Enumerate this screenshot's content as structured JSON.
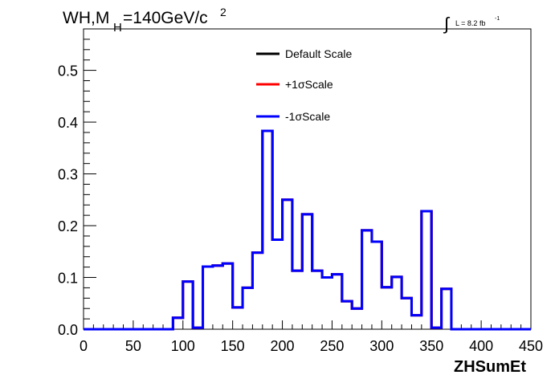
{
  "chart_data": {
    "type": "line",
    "title_main": "WH,M",
    "title_sub": "H",
    "title_rest": "=140GeV/c",
    "title_sup": "2",
    "lumi_symbol": "∫",
    "lumi_text": "L = 8.2 fb",
    "lumi_sup": "-1",
    "xlabel": "ZHSumEt",
    "ylabel": "",
    "xlim": [
      0,
      450
    ],
    "ylim": [
      0,
      0.58
    ],
    "xticks": [
      "0",
      "50",
      "100",
      "150",
      "200",
      "250",
      "300",
      "350",
      "400",
      "450"
    ],
    "yticks": [
      "0.0",
      "0.1",
      "0.2",
      "0.3",
      "0.4",
      "0.5"
    ],
    "x_tick_values": [
      0,
      50,
      100,
      150,
      200,
      250,
      300,
      350,
      400,
      450
    ],
    "y_tick_values": [
      0.0,
      0.1,
      0.2,
      0.3,
      0.4,
      0.5
    ],
    "grid": false,
    "legend_position": "top-center",
    "bin_edges": [
      0,
      10,
      20,
      30,
      40,
      50,
      60,
      70,
      80,
      90,
      100,
      110,
      120,
      130,
      140,
      150,
      160,
      170,
      180,
      190,
      200,
      210,
      220,
      230,
      240,
      250,
      260,
      270,
      280,
      290,
      300,
      310,
      320,
      330,
      340,
      350,
      360,
      370,
      380,
      390,
      400,
      410,
      420,
      430,
      440,
      450
    ],
    "series": [
      {
        "name": "Default Scale",
        "color": "#000000",
        "values": [
          0,
          0,
          0,
          0,
          0,
          0,
          0,
          0,
          0,
          0.022,
          0.092,
          0.003,
          0.121,
          0.123,
          0.127,
          0.042,
          0.08,
          0.148,
          0.383,
          0.173,
          0.25,
          0.113,
          0.222,
          0.113,
          0.1,
          0.106,
          0.054,
          0.04,
          0.191,
          0.169,
          0.081,
          0.101,
          0.06,
          0.027,
          0.228,
          0.003,
          0.078,
          0,
          0,
          0,
          0,
          0,
          0,
          0,
          0
        ]
      },
      {
        "name": "+1σScale",
        "color": "#ff0000",
        "values": [
          0,
          0,
          0,
          0,
          0,
          0,
          0,
          0,
          0,
          0.022,
          0.092,
          0.003,
          0.121,
          0.123,
          0.127,
          0.042,
          0.08,
          0.148,
          0.383,
          0.173,
          0.25,
          0.113,
          0.222,
          0.113,
          0.1,
          0.106,
          0.054,
          0.04,
          0.191,
          0.169,
          0.081,
          0.101,
          0.06,
          0.027,
          0.228,
          0.003,
          0.078,
          0,
          0,
          0,
          0,
          0,
          0,
          0,
          0
        ]
      },
      {
        "name": "-1σScale",
        "color": "#0000ff",
        "values": [
          0,
          0,
          0,
          0,
          0,
          0,
          0,
          0,
          0,
          0.022,
          0.092,
          0.003,
          0.121,
          0.123,
          0.127,
          0.042,
          0.08,
          0.148,
          0.383,
          0.173,
          0.25,
          0.113,
          0.222,
          0.113,
          0.1,
          0.106,
          0.054,
          0.04,
          0.191,
          0.169,
          0.081,
          0.101,
          0.06,
          0.027,
          0.228,
          0.003,
          0.078,
          0,
          0,
          0,
          0,
          0,
          0,
          0,
          0
        ]
      }
    ]
  }
}
